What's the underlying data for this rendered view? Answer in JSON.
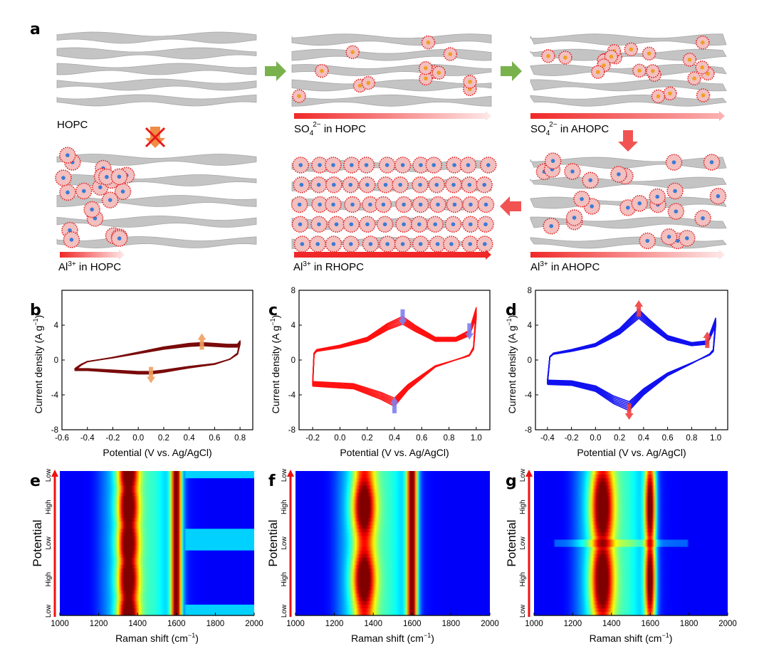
{
  "panel_letters": {
    "a": "a",
    "b": "b",
    "c": "c",
    "d": "d",
    "e": "e",
    "f": "f",
    "g": "g"
  },
  "schematic": {
    "tiles": [
      {
        "id": "hopc",
        "label": {
          "base": "HOPC",
          "sub": "",
          "sup": "",
          "rest": ""
        },
        "ions": "none"
      },
      {
        "id": "so4-hopc",
        "label": {
          "base": "SO",
          "sub": "4",
          "sup": "2−",
          "rest": "  in HOPC"
        },
        "ions": "sulfate",
        "arrow_fill": "partial-fade"
      },
      {
        "id": "so4-ahopc",
        "label": {
          "base": "SO",
          "sub": "4",
          "sup": "2−",
          "rest": "  in AHOPC"
        },
        "ions": "sulfate",
        "arrow_fill": "full-fade"
      },
      {
        "id": "al-hopc",
        "label": {
          "base": "Al",
          "sub": "",
          "sup": "3+",
          "rest": " in HOPC"
        },
        "ions": "aluminium",
        "arrow_fill": "short-fade"
      },
      {
        "id": "al-rhopc",
        "label": {
          "base": "Al",
          "sub": "",
          "sup": "3+",
          "rest": " in RHOPC"
        },
        "ions": "aluminium",
        "arrow_fill": "full-solid"
      },
      {
        "id": "al-ahopc",
        "label": {
          "base": "Al",
          "sub": "",
          "sup": "3+",
          "rest": " in AHOPC"
        },
        "ions": "aluminium",
        "arrow_fill": "full-fade"
      }
    ],
    "colors": {
      "graphene": "#c4c4c4",
      "ion_shell": "#e02020",
      "sulfate_core": "#f0a020",
      "al_core": "#3a7bd5",
      "flow_green": "#6aaa3a",
      "flow_red": "#f04040",
      "blocked": "#f08030"
    }
  },
  "chart_data": [
    {
      "id": "b",
      "type": "line",
      "title": "",
      "xlabel": "Potential (V vs. Ag/AgCl)",
      "ylabel": {
        "main": "Current density (A g",
        "sup": "−1",
        "end": ")"
      },
      "xlim": [
        -0.6,
        0.9
      ],
      "ylim": [
        -8,
        8
      ],
      "xticks": [
        -0.6,
        -0.4,
        -0.2,
        0.0,
        0.2,
        0.4,
        0.6,
        0.8
      ],
      "xtick_labels": [
        "-0.6",
        "-0.4",
        "-0.2",
        "0.0",
        "0.2",
        "0.4",
        "0.6",
        "0.8"
      ],
      "yticks": [
        -8,
        -4,
        0,
        4
      ],
      "ytick_labels": [
        "-8",
        "-4",
        "0",
        "4"
      ],
      "color": "#7a0a0a",
      "series": [
        {
          "x": [
            -0.5,
            -0.45,
            -0.4,
            -0.2,
            0,
            0.2,
            0.4,
            0.5,
            0.6,
            0.7,
            0.78,
            0.8,
            0.78,
            0.72,
            0.6,
            0.4,
            0.2,
            0.1,
            0,
            -0.2,
            -0.4,
            -0.5
          ],
          "y": [
            -1.2,
            -0.6,
            -0.2,
            0.3,
            0.9,
            1.5,
            1.9,
            2.0,
            1.9,
            1.8,
            1.8,
            2.2,
            0.8,
            0.1,
            -0.5,
            -0.9,
            -1.4,
            -1.6,
            -1.6,
            -1.4,
            -1.2,
            -1.2
          ]
        }
      ],
      "annotations": [
        {
          "type": "arrow-up",
          "x": 0.5,
          "y": 2.0,
          "color": "#f0a060"
        },
        {
          "type": "arrow-down",
          "x": 0.1,
          "y": -1.6,
          "color": "#f0a060"
        }
      ]
    },
    {
      "id": "c",
      "type": "line",
      "title": "",
      "xlabel": "Potential (V vs. Ag/AgCl)",
      "ylabel": {
        "main": "Current density (A g",
        "sup": "−1",
        "end": ")"
      },
      "xlim": [
        -0.3,
        1.1
      ],
      "ylim": [
        -8,
        8
      ],
      "xticks": [
        -0.2,
        0.0,
        0.2,
        0.4,
        0.6,
        0.8,
        1.0
      ],
      "xtick_labels": [
        "-0.2",
        "0.0",
        "0.2",
        "0.4",
        "0.6",
        "0.8",
        "1.0"
      ],
      "yticks": [
        -8,
        -4,
        0,
        4,
        8
      ],
      "ytick_labels": [
        "-8",
        "-4",
        "0",
        "4",
        "8"
      ],
      "color": "#ff1010",
      "series": [
        {
          "x": [
            -0.2,
            -0.19,
            -0.17,
            0,
            0.2,
            0.35,
            0.46,
            0.55,
            0.7,
            0.85,
            0.95,
            1.0,
            0.98,
            0.95,
            0.9,
            0.7,
            0.5,
            0.4,
            0.3,
            0.1,
            -0.1,
            -0.2
          ],
          "y": [
            -3.0,
            0.8,
            1.2,
            1.7,
            2.6,
            4.2,
            5.0,
            4.0,
            2.6,
            2.6,
            3.4,
            6.0,
            1.5,
            0.6,
            0.3,
            -0.8,
            -3.4,
            -5.3,
            -4.5,
            -3.3,
            -3.1,
            -3.0
          ]
        }
      ],
      "annotations": [
        {
          "type": "arrow-down",
          "x": 0.46,
          "y": 5.0,
          "color": "#8080f0"
        },
        {
          "type": "arrow-down",
          "x": 0.95,
          "y": 3.4,
          "color": "#8080f0"
        },
        {
          "type": "arrow-up",
          "x": 0.4,
          "y": -5.3,
          "color": "#8080f0"
        }
      ]
    },
    {
      "id": "d",
      "type": "line",
      "title": "",
      "xlabel": "Potential (V vs. Ag/AgCl)",
      "ylabel": {
        "main": "Current density (A g",
        "sup": "−1",
        "end": ")"
      },
      "xlim": [
        -0.5,
        1.1
      ],
      "ylim": [
        -8,
        8
      ],
      "xticks": [
        -0.4,
        -0.2,
        0.0,
        0.2,
        0.4,
        0.6,
        0.8,
        1.0
      ],
      "xtick_labels": [
        "-0.4",
        "-0.2",
        "0.0",
        "0.2",
        "0.4",
        "0.6",
        "0.8",
        "1.0"
      ],
      "yticks": [
        -8,
        -4,
        0,
        4,
        8
      ],
      "ytick_labels": [
        "-8",
        "-4",
        "0",
        "4",
        "8"
      ],
      "color": "#1010f0",
      "series": [
        {
          "x": [
            -0.4,
            -0.38,
            -0.35,
            -0.2,
            0,
            0.2,
            0.36,
            0.45,
            0.6,
            0.8,
            0.93,
            1.0,
            0.98,
            0.95,
            0.8,
            0.6,
            0.4,
            0.28,
            0.15,
            0,
            -0.2,
            -0.4
          ],
          "y": [
            -2.8,
            0.4,
            0.8,
            1.2,
            1.9,
            3.6,
            5.8,
            4.6,
            2.8,
            2.0,
            2.2,
            4.8,
            1.2,
            0.7,
            -0.4,
            -1.8,
            -4.0,
            -5.8,
            -5.0,
            -3.6,
            -2.9,
            -2.8
          ]
        }
      ],
      "annotations": [
        {
          "type": "arrow-up",
          "x": 0.36,
          "y": 5.8,
          "color": "#f04040"
        },
        {
          "type": "arrow-up",
          "x": 0.93,
          "y": 2.2,
          "color": "#f04040"
        },
        {
          "type": "arrow-down",
          "x": 0.28,
          "y": -5.8,
          "color": "#f04040"
        }
      ]
    },
    {
      "id": "e",
      "type": "heatmap",
      "title": "",
      "xlabel": {
        "main": "Raman shift (cm",
        "sup": "−1",
        "end": ")"
      },
      "ylabel": "Potential",
      "xlim": [
        1000,
        2000
      ],
      "xticks": [
        1000,
        1200,
        1400,
        1600,
        1800,
        2000
      ],
      "xtick_labels": [
        "1000",
        "1200",
        "1400",
        "1600",
        "1800",
        "2000"
      ],
      "ytick_labels": [
        "Low",
        "High",
        "Low",
        "High",
        "Low"
      ],
      "peaks": [
        1350,
        1600
      ],
      "colormap": "jet"
    },
    {
      "id": "f",
      "type": "heatmap",
      "title": "",
      "xlabel": {
        "main": "Raman shift (cm",
        "sup": "−1",
        "end": ")"
      },
      "ylabel": "Potential",
      "xlim": [
        1000,
        2000
      ],
      "xticks": [
        1000,
        1200,
        1400,
        1600,
        1800,
        2000
      ],
      "xtick_labels": [
        "1000",
        "1200",
        "1400",
        "1600",
        "1800",
        "2000"
      ],
      "ytick_labels": [
        "Low",
        "High",
        "Low",
        "High",
        "Low"
      ],
      "peaks": [
        1350,
        1600
      ],
      "colormap": "jet"
    },
    {
      "id": "g",
      "type": "heatmap",
      "title": "",
      "xlabel": {
        "main": "Raman shift (cm",
        "sup": "−1",
        "end": ")"
      },
      "ylabel": "Potential",
      "xlim": [
        1000,
        2000
      ],
      "xticks": [
        1000,
        1200,
        1400,
        1600,
        1800,
        2000
      ],
      "xtick_labels": [
        "1000",
        "1200",
        "1400",
        "1600",
        "1800",
        "2000"
      ],
      "ytick_labels": [
        "Low",
        "High",
        "Low",
        "High",
        "Low"
      ],
      "peaks": [
        1350,
        1600
      ],
      "colormap": "jet"
    }
  ]
}
